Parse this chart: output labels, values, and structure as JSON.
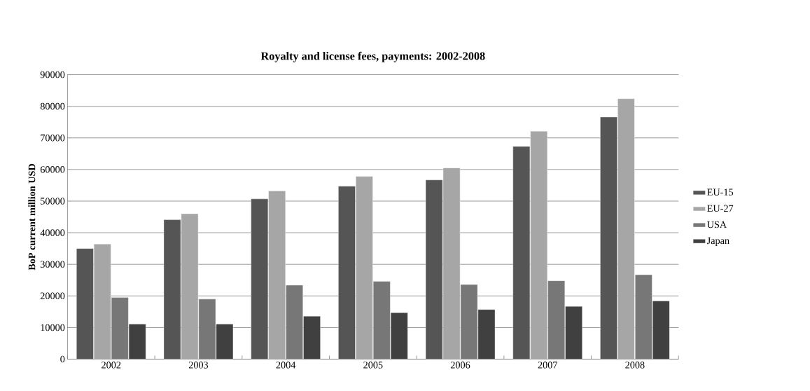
{
  "chart_data": {
    "type": "bar",
    "title": "Royalty and license fees, payments: 2002-2008",
    "ylabel": "BoP current million USD",
    "categories": [
      "2002",
      "2003",
      "2004",
      "2005",
      "2006",
      "2007",
      "2008"
    ],
    "series": [
      {
        "name": "EU-15",
        "color": "#555555",
        "values": [
          35000,
          44100,
          50700,
          54700,
          56700,
          67300,
          76600
        ]
      },
      {
        "name": "EU-27",
        "color": "#a6a6a6",
        "values": [
          36400,
          46000,
          53200,
          57800,
          60500,
          72100,
          82400
        ]
      },
      {
        "name": "USA",
        "color": "#777777",
        "values": [
          19500,
          19000,
          23400,
          24600,
          23600,
          24800,
          26700
        ]
      },
      {
        "name": "Japan",
        "color": "#404040",
        "values": [
          11100,
          11100,
          13600,
          14700,
          15700,
          16700,
          18400
        ]
      }
    ],
    "ylim": [
      0,
      90000
    ],
    "yticks": [
      0,
      10000,
      20000,
      30000,
      40000,
      50000,
      60000,
      70000,
      80000,
      90000
    ],
    "grid": "y",
    "legend": "right"
  }
}
